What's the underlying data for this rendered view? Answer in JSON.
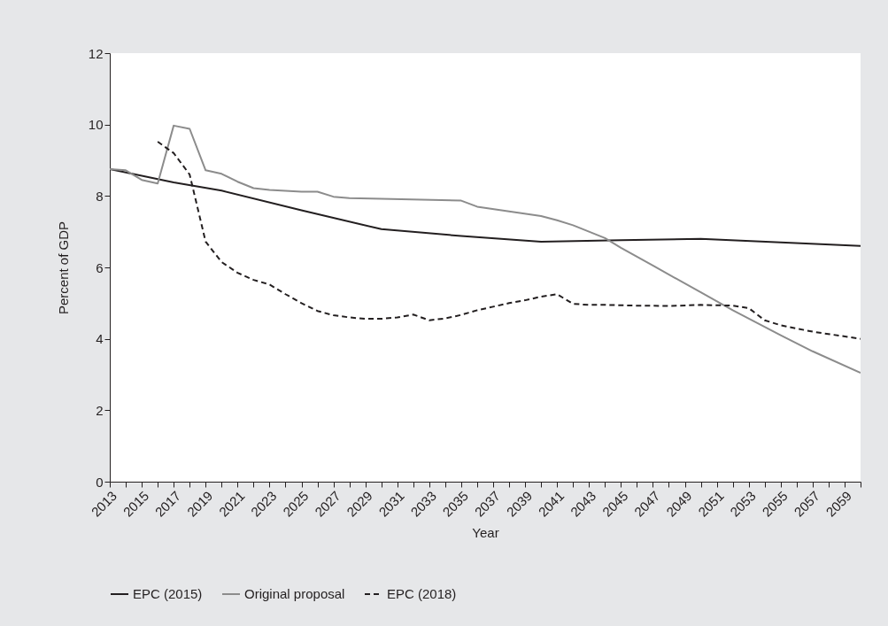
{
  "chart_data": {
    "type": "line",
    "xlabel": "Year",
    "ylabel": "Percent of GDP",
    "xlim": [
      2013,
      2060
    ],
    "ylim": [
      0,
      12
    ],
    "yticks": [
      0,
      2,
      4,
      6,
      8,
      10,
      12
    ],
    "xticks": [
      2013,
      {
        "value": 2014,
        "label": null
      },
      2015,
      {
        "value": 2016,
        "label": null
      },
      2017,
      {
        "value": 2018,
        "label": null
      },
      2019,
      {
        "value": 2020,
        "label": null
      },
      2021,
      {
        "value": 2022,
        "label": null
      },
      2023,
      {
        "value": 2024,
        "label": null
      },
      2025,
      {
        "value": 2026,
        "label": null
      },
      2027,
      {
        "value": 2028,
        "label": null
      },
      2029,
      {
        "value": 2030,
        "label": null
      },
      2031,
      {
        "value": 2032,
        "label": null
      },
      2033,
      {
        "value": 2034,
        "label": null
      },
      2035,
      {
        "value": 2036,
        "label": null
      },
      2037,
      {
        "value": 2038,
        "label": null
      },
      2039,
      {
        "value": 2040,
        "label": null
      },
      2041,
      {
        "value": 2042,
        "label": null
      },
      2043,
      {
        "value": 2044,
        "label": null
      },
      2045,
      {
        "value": 2046,
        "label": null
      },
      2047,
      {
        "value": 2048,
        "label": null
      },
      2049,
      {
        "value": 2050,
        "label": null
      },
      2051,
      {
        "value": 2052,
        "label": null
      },
      2053,
      {
        "value": 2054,
        "label": null
      },
      2055,
      {
        "value": 2056,
        "label": null
      },
      2057,
      {
        "value": 2058,
        "label": null
      },
      2059,
      {
        "value": 2060,
        "label": null
      }
    ],
    "grid": false,
    "legend": "bottom",
    "marker": "none",
    "series": [
      {
        "name": "EPC (2015)",
        "color": "#231f20",
        "line_style": "solid",
        "x": [
          2013,
          2017,
          2020,
          2025,
          2030,
          2035,
          2040,
          2045,
          2050,
          2055,
          2060
        ],
        "values": [
          8.75,
          8.38,
          8.15,
          7.6,
          7.07,
          6.88,
          6.72,
          6.76,
          6.8,
          6.7,
          6.6
        ]
      },
      {
        "name": "Original proposal",
        "color": "#8c8c8c",
        "line_style": "solid",
        "x": [
          2013,
          2014,
          2015,
          2016,
          2017,
          2018,
          2019,
          2020,
          2021,
          2022,
          2023,
          2025,
          2026,
          2027,
          2028,
          2030,
          2035,
          2036,
          2038,
          2040,
          2041,
          2042,
          2044,
          2045,
          2047,
          2050,
          2052,
          2055,
          2057,
          2060
        ],
        "values": [
          8.75,
          8.72,
          8.45,
          8.35,
          9.97,
          9.88,
          8.72,
          8.62,
          8.4,
          8.22,
          8.17,
          8.12,
          8.12,
          7.98,
          7.94,
          7.92,
          7.87,
          7.7,
          7.57,
          7.44,
          7.32,
          7.18,
          6.82,
          6.55,
          6.05,
          5.3,
          4.8,
          4.1,
          3.65,
          3.05
        ]
      },
      {
        "name": "EPC (2018)",
        "color": "#231f20",
        "line_style": "dashed",
        "x": [
          2016,
          2017,
          2018,
          2019,
          2020,
          2021,
          2022,
          2023,
          2024,
          2025,
          2026,
          2027,
          2028,
          2029,
          2030,
          2031,
          2032,
          2033,
          2034,
          2035,
          2036,
          2037,
          2038,
          2039,
          2040,
          2041,
          2042,
          2043,
          2044,
          2046,
          2048,
          2050,
          2052,
          2053,
          2054,
          2055,
          2057,
          2060
        ],
        "values": [
          9.52,
          9.2,
          8.6,
          6.72,
          6.15,
          5.85,
          5.65,
          5.52,
          5.25,
          5.0,
          4.78,
          4.66,
          4.6,
          4.56,
          4.56,
          4.6,
          4.68,
          4.52,
          4.57,
          4.67,
          4.8,
          4.9,
          5.0,
          5.08,
          5.18,
          5.25,
          4.98,
          4.95,
          4.95,
          4.93,
          4.92,
          4.95,
          4.93,
          4.86,
          4.52,
          4.38,
          4.2,
          4.0
        ]
      }
    ]
  }
}
